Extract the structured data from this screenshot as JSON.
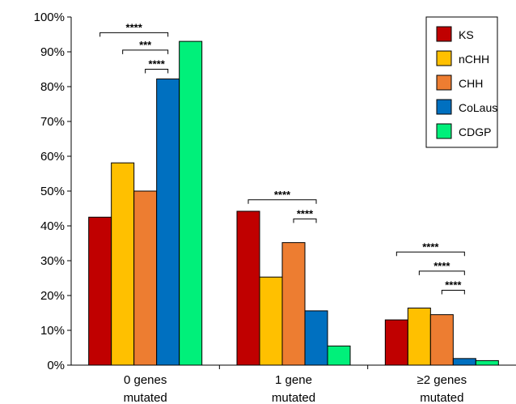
{
  "chart_data": {
    "type": "bar",
    "title": "",
    "xlabel": "",
    "ylabel": "",
    "ylim": [
      0,
      100
    ],
    "y_ticks": [
      "0%",
      "10%",
      "20%",
      "30%",
      "40%",
      "50%",
      "60%",
      "70%",
      "80%",
      "90%",
      "100%"
    ],
    "categories": [
      {
        "line1": "0 genes",
        "line2": "mutated"
      },
      {
        "line1": "1 gene",
        "line2": "mutated"
      },
      {
        "line1": "≥2 genes",
        "line2": "mutated"
      }
    ],
    "series": [
      {
        "name": "KS",
        "color": "#c00000",
        "values": [
          42.5,
          44.2,
          13.0
        ]
      },
      {
        "name": "nCHH",
        "color": "#ffc000",
        "values": [
          58.1,
          25.3,
          16.4
        ]
      },
      {
        "name": "CHH",
        "color": "#ed7d31",
        "values": [
          50.0,
          35.2,
          14.5
        ]
      },
      {
        "name": "CoLaus",
        "color": "#0070c0",
        "values": [
          82.2,
          15.6,
          1.9
        ]
      },
      {
        "name": "CDGP",
        "color": "#00f07a",
        "values": [
          93.0,
          5.5,
          1.3
        ]
      }
    ],
    "legend": "top-right",
    "grid": false,
    "significance": [
      {
        "category": 0,
        "from": 0,
        "to": 3,
        "y": 95.5,
        "label": "****"
      },
      {
        "category": 0,
        "from": 1,
        "to": 3,
        "y": 90.5,
        "label": "***"
      },
      {
        "category": 0,
        "from": 2,
        "to": 3,
        "y": 85.0,
        "label": "****"
      },
      {
        "category": 1,
        "from": 0,
        "to": 3,
        "y": 47.5,
        "label": "****"
      },
      {
        "category": 1,
        "from": 2,
        "to": 3,
        "y": 42.0,
        "label": "****"
      },
      {
        "category": 2,
        "from": 0,
        "to": 3,
        "y": 32.5,
        "label": "****"
      },
      {
        "category": 2,
        "from": 1,
        "to": 3,
        "y": 27.0,
        "label": "****"
      },
      {
        "category": 2,
        "from": 2,
        "to": 3,
        "y": 21.5,
        "label": "****"
      }
    ]
  }
}
